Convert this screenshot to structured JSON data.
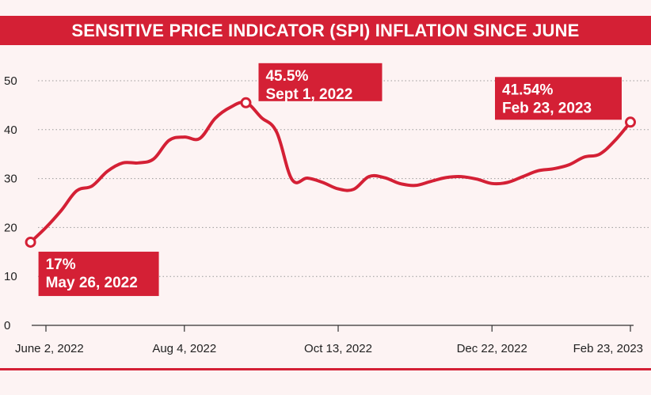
{
  "colors": {
    "accent": "#d42035",
    "line": "#d42035",
    "background": "#fdf3f3",
    "text": "#222222",
    "grid": "#9a9a9a"
  },
  "chart_data": {
    "type": "line",
    "title": "SENSITIVE PRICE INDICATOR (SPI) INFLATION SINCE JUNE",
    "xlabel": "",
    "ylabel": "",
    "ylim": [
      0,
      50
    ],
    "yticks": [
      0,
      10,
      20,
      30,
      40,
      50
    ],
    "grid": true,
    "legend": "none",
    "x_tick_labels": [
      "June 2, 2022",
      "Aug 4, 2022",
      "Oct 13, 2022",
      "Dec 22, 2022",
      "Feb 23, 2023"
    ],
    "x_tick_dates": [
      "2022-06-02",
      "2022-08-04",
      "2022-10-13",
      "2022-12-22",
      "2023-02-23"
    ],
    "series": [
      {
        "points": [
          {
            "x": "2022-05-26",
            "y": 17.0
          },
          {
            "x": "2022-06-02",
            "y": 20.0
          },
          {
            "x": "2022-06-09",
            "y": 23.5
          },
          {
            "x": "2022-06-16",
            "y": 27.5
          },
          {
            "x": "2022-06-23",
            "y": 28.5
          },
          {
            "x": "2022-06-30",
            "y": 31.5
          },
          {
            "x": "2022-07-07",
            "y": 33.2
          },
          {
            "x": "2022-07-14",
            "y": 33.2
          },
          {
            "x": "2022-07-21",
            "y": 34.0
          },
          {
            "x": "2022-07-28",
            "y": 37.8
          },
          {
            "x": "2022-08-04",
            "y": 38.5
          },
          {
            "x": "2022-08-11",
            "y": 38.2
          },
          {
            "x": "2022-08-18",
            "y": 42.3
          },
          {
            "x": "2022-08-25",
            "y": 44.6
          },
          {
            "x": "2022-09-01",
            "y": 45.5
          },
          {
            "x": "2022-09-08",
            "y": 42.5
          },
          {
            "x": "2022-09-15",
            "y": 39.5
          },
          {
            "x": "2022-09-22",
            "y": 29.8
          },
          {
            "x": "2022-09-29",
            "y": 30.1
          },
          {
            "x": "2022-10-06",
            "y": 29.2
          },
          {
            "x": "2022-10-13",
            "y": 27.9
          },
          {
            "x": "2022-10-20",
            "y": 27.8
          },
          {
            "x": "2022-10-27",
            "y": 30.4
          },
          {
            "x": "2022-11-03",
            "y": 30.2
          },
          {
            "x": "2022-11-10",
            "y": 29.0
          },
          {
            "x": "2022-11-17",
            "y": 28.6
          },
          {
            "x": "2022-11-24",
            "y": 29.4
          },
          {
            "x": "2022-12-01",
            "y": 30.2
          },
          {
            "x": "2022-12-08",
            "y": 30.4
          },
          {
            "x": "2022-12-15",
            "y": 29.9
          },
          {
            "x": "2022-12-22",
            "y": 29.0
          },
          {
            "x": "2022-12-29",
            "y": 29.2
          },
          {
            "x": "2023-01-05",
            "y": 30.4
          },
          {
            "x": "2023-01-12",
            "y": 31.6
          },
          {
            "x": "2023-01-19",
            "y": 32.0
          },
          {
            "x": "2023-01-26",
            "y": 32.8
          },
          {
            "x": "2023-02-02",
            "y": 34.4
          },
          {
            "x": "2023-02-09",
            "y": 35.0
          },
          {
            "x": "2023-02-16",
            "y": 37.8
          },
          {
            "x": "2023-02-23",
            "y": 41.54
          }
        ]
      }
    ],
    "annotations": [
      {
        "label": "17%",
        "date_label": "May 26, 2022",
        "x": "2022-05-26",
        "y": 17.0
      },
      {
        "label": "45.5%",
        "date_label": "Sept 1, 2022",
        "x": "2022-09-01",
        "y": 45.5
      },
      {
        "label": "41.54%",
        "date_label": "Feb 23, 2023",
        "x": "2023-02-23",
        "y": 41.54
      }
    ]
  }
}
